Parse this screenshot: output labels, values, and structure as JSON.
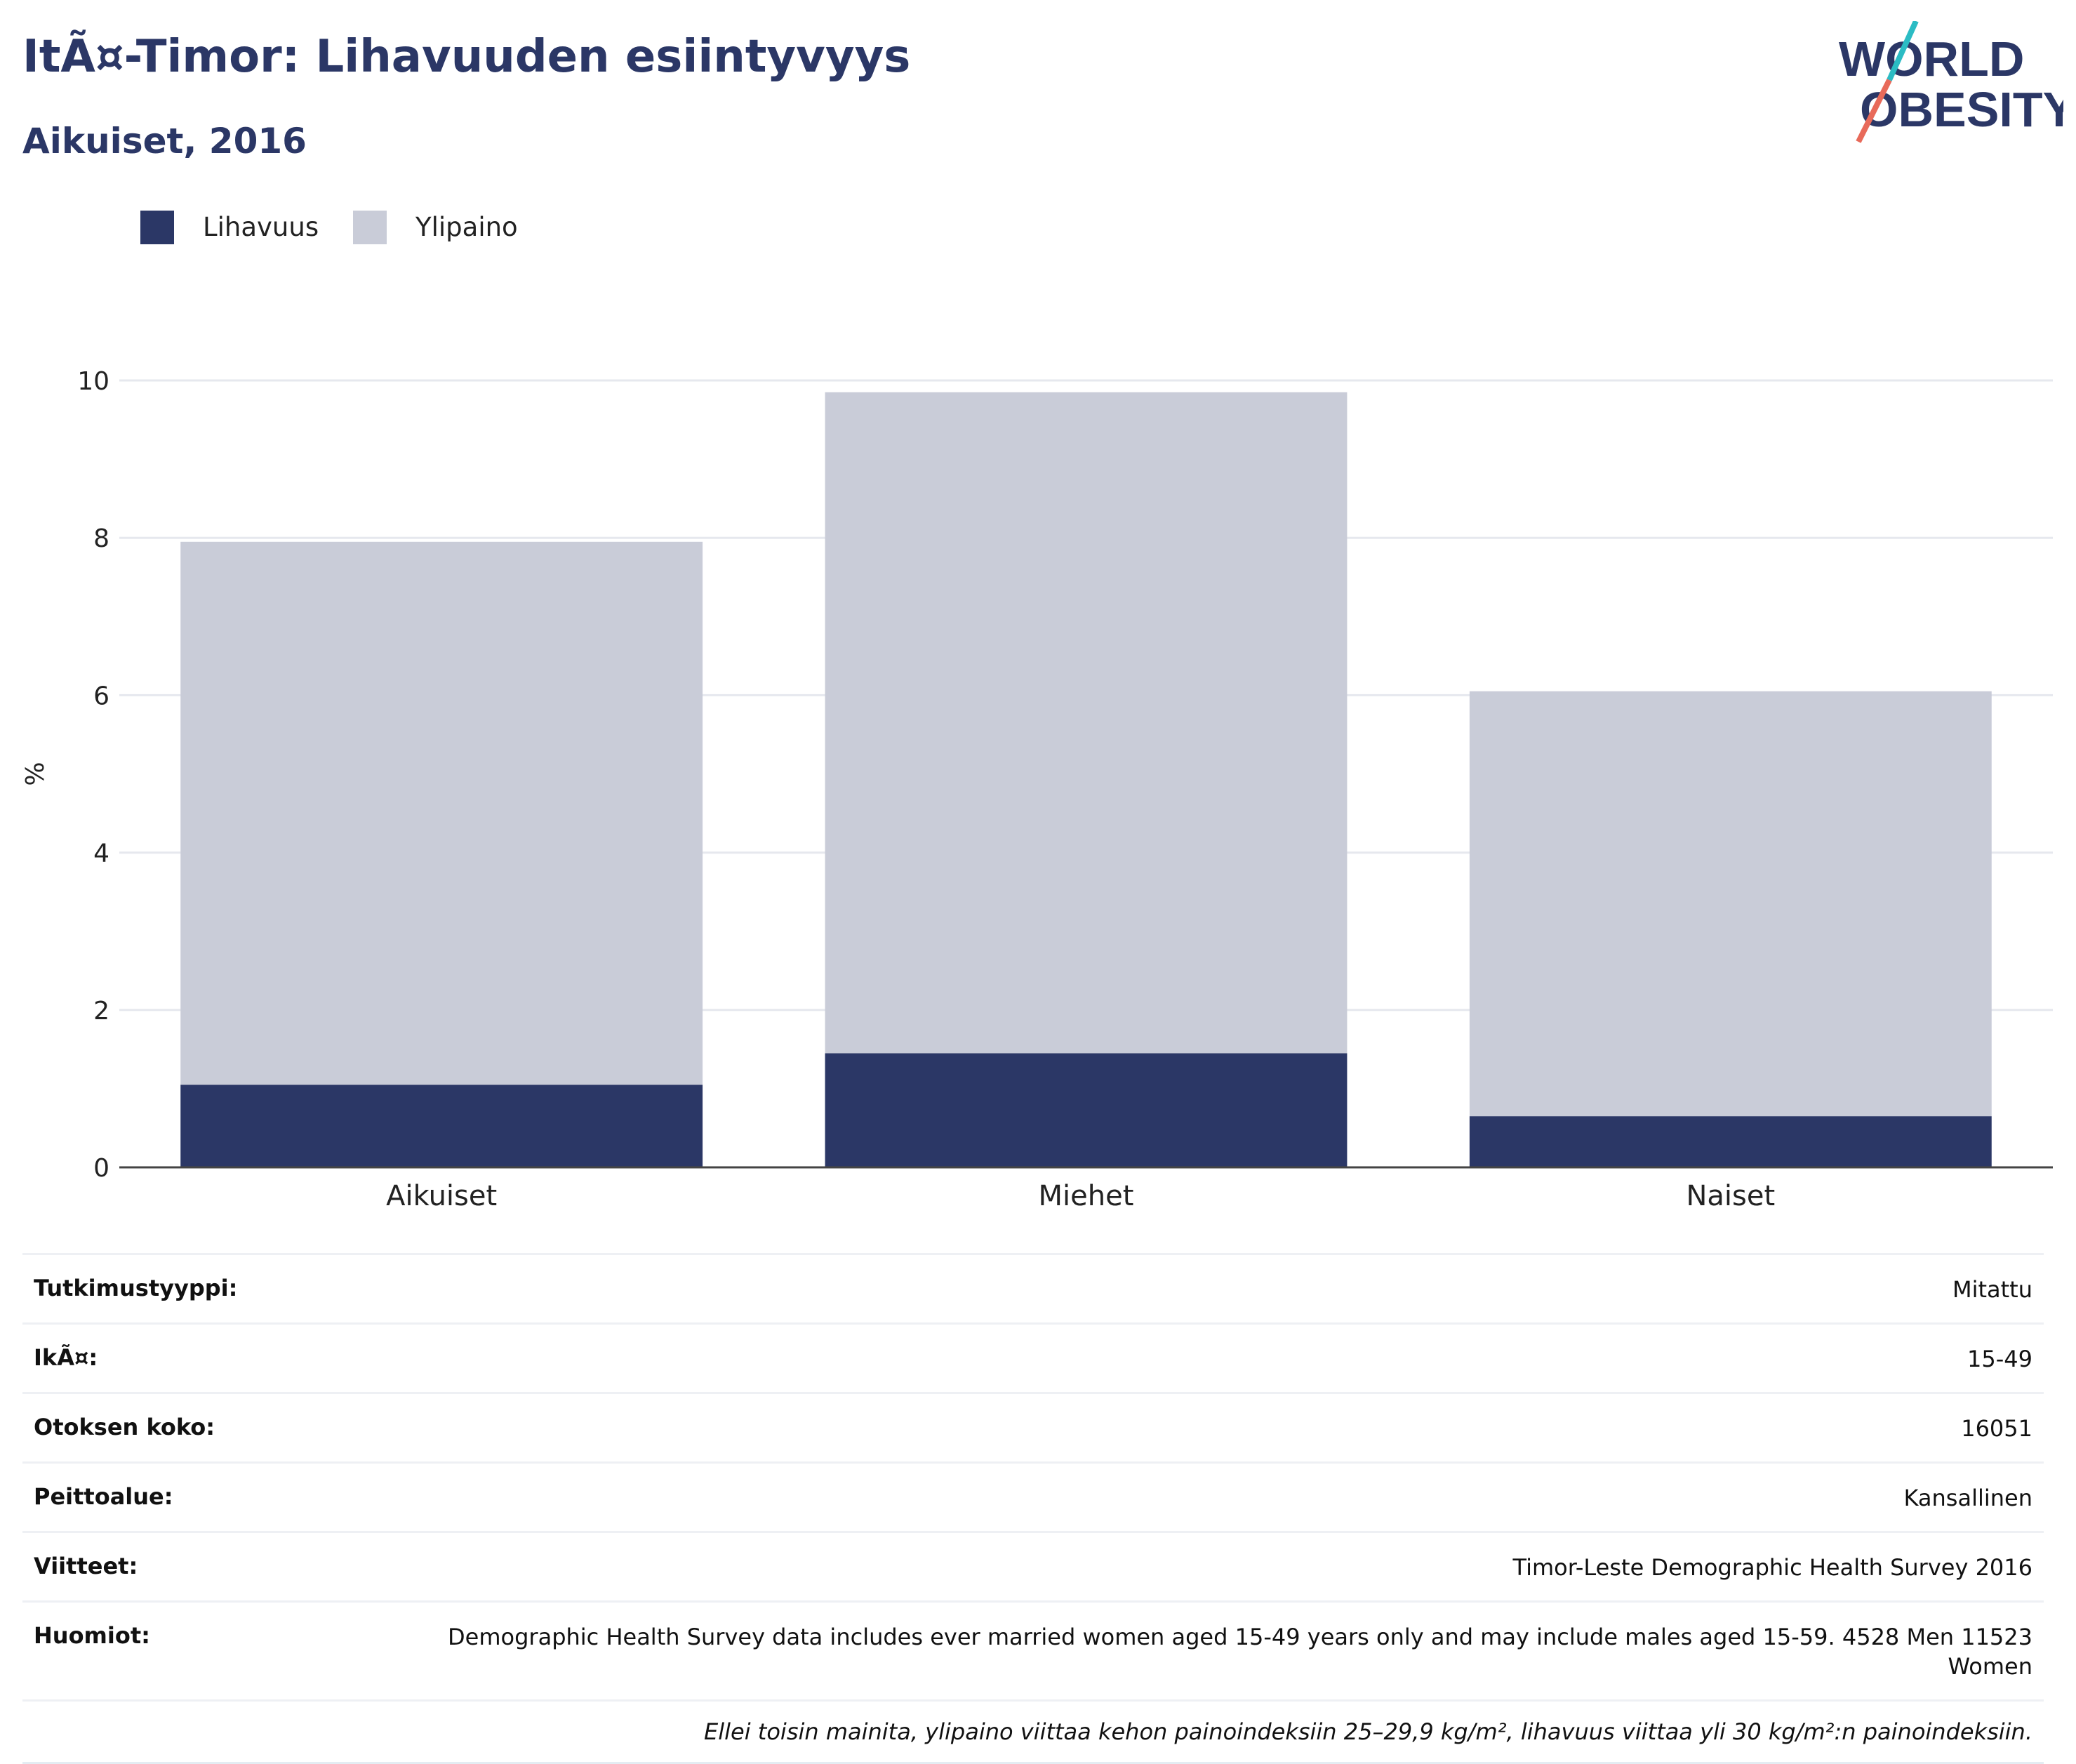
{
  "header": {
    "title": "ItÃ¤-Timor: Lihavuuden esiintyvyys",
    "subtitle": "Aikuiset, 2016"
  },
  "logo": {
    "line1": "WORLD",
    "line2": "OBESITY",
    "text_color": "#2b3766",
    "slash_colors": [
      "#2bbcc4",
      "#e86a5a"
    ]
  },
  "legend": [
    {
      "label": "Lihavuus",
      "color": "#2b3766"
    },
    {
      "label": "Ylipaino",
      "color": "#c9ccd8"
    }
  ],
  "chart_data": {
    "type": "bar",
    "stacked": true,
    "categories": [
      "Aikuiset",
      "Miehet",
      "Naiset"
    ],
    "series": [
      {
        "name": "Lihavuus",
        "values": [
          1.05,
          1.45,
          0.65
        ],
        "color": "#2b3766"
      },
      {
        "name": "Ylipaino",
        "values": [
          6.9,
          8.4,
          5.4
        ],
        "color": "#c9ccd8"
      }
    ],
    "ylabel": "%",
    "ylim": [
      0,
      10
    ],
    "yticks": [
      0,
      2,
      4,
      6,
      8,
      10
    ],
    "grid": true,
    "legend_position": "top-left"
  },
  "info": [
    {
      "label": "Tutkimustyyppi:",
      "value": "Mitattu"
    },
    {
      "label": "IkÃ¤:",
      "value": "15-49"
    },
    {
      "label": "Otoksen koko:",
      "value": "16051"
    },
    {
      "label": "Peittoalue:",
      "value": "Kansallinen"
    },
    {
      "label": "Viitteet:",
      "value": "Timor-Leste Demographic Health Survey 2016"
    },
    {
      "label": "Huomiot:",
      "value": "Demographic Health Survey data includes ever married women aged 15-49 years only and may include males aged 15-59. 4528 Men 11523 Women"
    }
  ],
  "footnote": "Ellei toisin mainita, ylipaino viittaa kehon painoindeksiin 25–29,9 kg/m², lihavuus viittaa yli 30 kg/m²:n painoindeksiin."
}
